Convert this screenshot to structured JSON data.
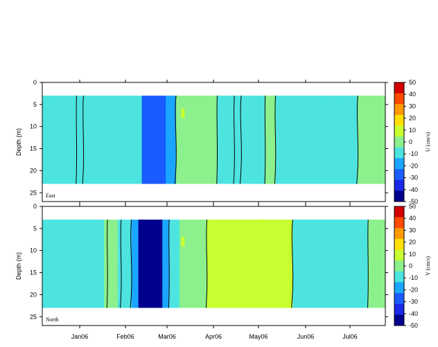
{
  "chart_data": [
    {
      "type": "heatmap",
      "panel_label": "East",
      "ylabel": "Depth (m)",
      "colorbar_label": "U (cm/s)",
      "yticks": [
        0,
        5,
        10,
        15,
        20,
        25
      ],
      "ylim": [
        27,
        0
      ],
      "data_depth_range": [
        3,
        23
      ],
      "grid": false,
      "bands": [
        {
          "from": 0.0,
          "to": 0.02,
          "value": -5
        },
        {
          "from": 0.02,
          "to": 0.11,
          "value": -12
        },
        {
          "from": 0.11,
          "to": 0.29,
          "value": -5
        },
        {
          "from": 0.29,
          "to": 0.36,
          "value": -28
        },
        {
          "from": 0.36,
          "to": 0.39,
          "value": -15
        },
        {
          "from": 0.39,
          "to": 0.51,
          "value": 3
        },
        {
          "from": 0.51,
          "to": 0.65,
          "value": -5
        },
        {
          "from": 0.65,
          "to": 0.68,
          "value": 3
        },
        {
          "from": 0.68,
          "to": 0.83,
          "value": -5
        },
        {
          "from": 0.83,
          "to": 0.86,
          "value": -12
        },
        {
          "from": 0.86,
          "to": 0.92,
          "value": -5
        },
        {
          "from": 0.92,
          "to": 1.0,
          "value": 2
        }
      ],
      "spots": [
        {
          "t": 0.41,
          "d": 7,
          "value": 12
        },
        {
          "t": 0.75,
          "d": 8,
          "value": -12
        }
      ],
      "contour_lines": [
        0.1,
        0.12,
        0.39,
        0.51,
        0.56,
        0.58,
        0.65,
        0.68,
        0.92
      ]
    },
    {
      "type": "heatmap",
      "panel_label": "North",
      "ylabel": "Depth (m)",
      "colorbar_label": "V (cm/s)",
      "yticks": [
        0,
        5,
        10,
        15,
        20,
        25
      ],
      "ylim": [
        27,
        0
      ],
      "data_depth_range": [
        3,
        23
      ],
      "grid": false,
      "bands": [
        {
          "from": 0.0,
          "to": 0.18,
          "value": -5
        },
        {
          "from": 0.18,
          "to": 0.22,
          "value": 3
        },
        {
          "from": 0.22,
          "to": 0.26,
          "value": -8
        },
        {
          "from": 0.26,
          "to": 0.28,
          "value": -18
        },
        {
          "from": 0.28,
          "to": 0.35,
          "value": -42
        },
        {
          "from": 0.35,
          "to": 0.37,
          "value": -18
        },
        {
          "from": 0.37,
          "to": 0.4,
          "value": -8
        },
        {
          "from": 0.4,
          "to": 0.48,
          "value": 3
        },
        {
          "from": 0.48,
          "to": 0.73,
          "value": 5
        },
        {
          "from": 0.73,
          "to": 0.95,
          "value": -5
        },
        {
          "from": 0.95,
          "to": 1.0,
          "value": 3
        }
      ],
      "spots": [
        {
          "t": 0.41,
          "d": 8,
          "value": 12
        },
        {
          "t": 0.5,
          "d": 8,
          "value": 12
        },
        {
          "t": 0.64,
          "d": 4,
          "value": 12
        }
      ],
      "contour_lines": [
        0.19,
        0.23,
        0.26,
        0.37,
        0.48,
        0.73,
        0.95
      ]
    }
  ],
  "x_axis": {
    "tick_labels": [
      "Jan06",
      "Feb06",
      "Mar06",
      "Apr06",
      "May06",
      "Jun06",
      "Jul06"
    ]
  },
  "colorbar": {
    "ticks": [
      50,
      40,
      30,
      20,
      10,
      0,
      -10,
      -20,
      -30,
      -40,
      -50
    ],
    "colors": [
      "#d40000",
      "#ff4a00",
      "#ff9a00",
      "#ffe000",
      "#c8ff30",
      "#8cf08c",
      "#4de4e0",
      "#1aa6ff",
      "#1a5cff",
      "#1a28e8",
      "#00008c"
    ]
  }
}
